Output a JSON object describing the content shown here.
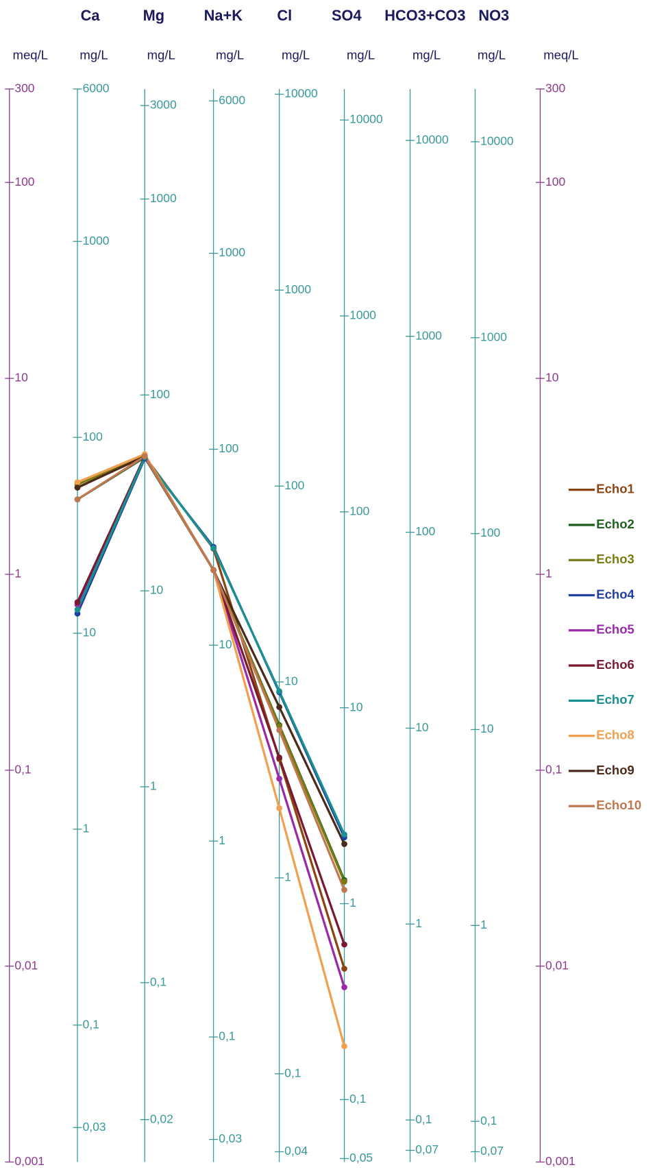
{
  "chart_data": {
    "type": "line",
    "categories": [
      "Ca",
      "Mg",
      "Na+K",
      "Cl",
      "SO4",
      "HCO3+CO3",
      "NO3"
    ],
    "units": [
      "meq/L",
      "mg/L",
      "mg/L",
      "mg/L",
      "mg/L",
      "mg/L",
      "mg/L",
      "mg/L",
      "meq/L"
    ],
    "log_scale": true,
    "axis_colors": {
      "meq": "#8e3a8e",
      "mg": "#3a9a9a"
    },
    "axes": [
      {
        "ylim": [
          0.001,
          300
        ],
        "yticks": [
          300,
          100,
          10,
          1,
          {
            "value": 0.1,
            "label": "0,1"
          },
          {
            "value": 0.01,
            "label": "0,01"
          },
          {
            "value": 0.001,
            "label": "0,001"
          }
        ]
      },
      {
        "ylim": [
          0.02,
          6000
        ],
        "yticks": [
          6000,
          1000,
          100,
          10,
          1,
          {
            "value": 0.1,
            "label": "0,1"
          },
          {
            "value": 0.03,
            "label": "0,03"
          }
        ]
      },
      {
        "ylim": [
          0.01215,
          3645
        ],
        "yticks": [
          3000,
          1000,
          100,
          10,
          1,
          {
            "value": 0.1,
            "label": "0,1"
          },
          {
            "value": 0.02,
            "label": "0,02"
          }
        ]
      },
      {
        "ylim": [
          0.023,
          6900
        ],
        "yticks": [
          6000,
          1000,
          100,
          10,
          1,
          {
            "value": 0.1,
            "label": "0,1"
          },
          {
            "value": 0.03,
            "label": "0,03"
          }
        ]
      },
      {
        "ylim": [
          0.03545,
          10635
        ],
        "yticks": [
          10000,
          1000,
          100,
          10,
          1,
          {
            "value": 0.1,
            "label": "0,1"
          },
          {
            "value": 0.04,
            "label": "0,04"
          }
        ]
      },
      {
        "ylim": [
          0.048,
          14400
        ],
        "yticks": [
          10000,
          1000,
          100,
          10,
          1,
          {
            "value": 0.1,
            "label": "0,1"
          },
          {
            "value": 0.05,
            "label": "0,05"
          }
        ]
      },
      {
        "ylim": [
          0.061,
          18300
        ],
        "yticks": [
          10000,
          1000,
          100,
          10,
          1,
          {
            "value": 0.1,
            "label": "0,1"
          },
          {
            "value": 0.07,
            "label": "0,07"
          }
        ]
      },
      {
        "ylim": [
          0.062,
          18600
        ],
        "yticks": [
          10000,
          1000,
          100,
          10,
          1,
          {
            "value": 0.1,
            "label": "0,1"
          },
          {
            "value": 0.07,
            "label": "0,07"
          }
        ]
      },
      {
        "ylim": [
          0.001,
          300
        ],
        "yticks": [
          300,
          100,
          10,
          1,
          {
            "value": 0.1,
            "label": "0,1"
          },
          {
            "value": 0.01,
            "label": "0,01"
          },
          {
            "value": 0.001,
            "label": "0,001"
          }
        ]
      }
    ],
    "series": [
      {
        "name": "Echo1",
        "color": "#8b4513",
        "values": [
          2.77,
          4.0,
          1.35,
          0.114,
          0.0097,
          null,
          null
        ]
      },
      {
        "name": "Echo2",
        "color": "#1e5e1e",
        "values": [
          2.41,
          3.95,
          1.05,
          0.17,
          0.0275,
          null,
          null
        ]
      },
      {
        "name": "Echo3",
        "color": "#7a7a12",
        "values": [
          2.87,
          4.05,
          1.05,
          0.168,
          0.027,
          null,
          null
        ]
      },
      {
        "name": "Echo4",
        "color": "#1f3fa0",
        "values": [
          0.63,
          3.9,
          1.38,
          0.25,
          0.0454,
          null,
          null
        ]
      },
      {
        "name": "Echo5",
        "color": "#9a2aa8",
        "values": [
          0.7,
          4.0,
          1.05,
          0.0905,
          0.0078,
          null,
          null
        ]
      },
      {
        "name": "Echo6",
        "color": "#7a1a30",
        "values": [
          0.72,
          4.0,
          1.05,
          0.116,
          0.0129,
          null,
          null
        ]
      },
      {
        "name": "Echo7",
        "color": "#1a9090",
        "values": [
          0.66,
          3.95,
          1.36,
          0.253,
          0.047,
          null,
          null
        ]
      },
      {
        "name": "Echo8",
        "color": "#f0a050",
        "values": [
          2.95,
          4.1,
          1.05,
          0.064,
          0.0039,
          null,
          null
        ]
      },
      {
        "name": "Echo9",
        "color": "#4a2a1a",
        "values": [
          2.77,
          4.0,
          1.05,
          0.21,
          0.042,
          null,
          null
        ]
      },
      {
        "name": "Echo10",
        "color": "#c07850",
        "values": [
          2.41,
          4.0,
          1.05,
          0.16,
          0.0245,
          null,
          null
        ]
      }
    ]
  }
}
